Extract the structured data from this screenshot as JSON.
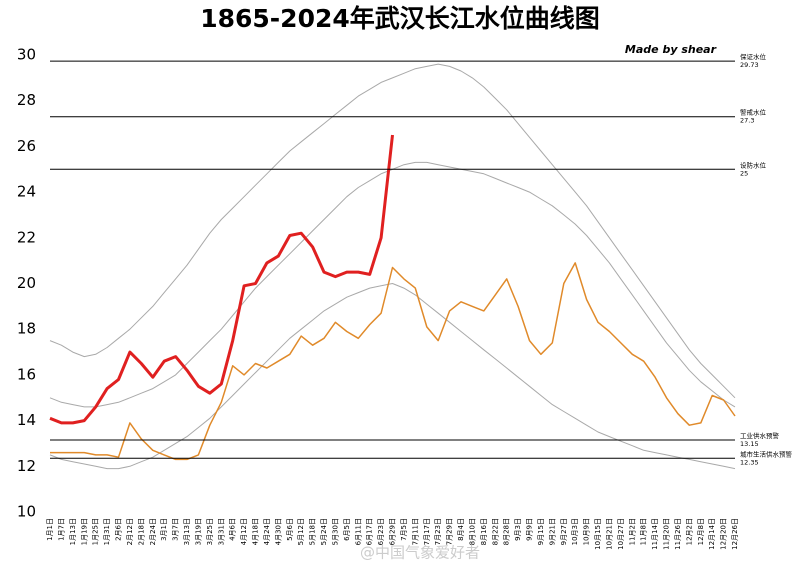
{
  "chart_data": {
    "type": "line",
    "title": "1865-2024年武汉长江水位曲线图",
    "annotation": "Made by shear",
    "watermark": "@中国气象爱好者",
    "categories": [
      "1月1日",
      "1月7日",
      "1月13日",
      "1月19日",
      "1月25日",
      "1月31日",
      "2月6日",
      "2月12日",
      "2月18日",
      "2月24日",
      "3月1日",
      "3月7日",
      "3月13日",
      "3月19日",
      "3月25日",
      "3月31日",
      "4月6日",
      "4月12日",
      "4月18日",
      "4月24日",
      "4月30日",
      "5月6日",
      "5月12日",
      "5月18日",
      "5月24日",
      "5月30日",
      "6月5日",
      "6月11日",
      "6月17日",
      "6月23日",
      "6月29日",
      "7月5日",
      "7月11日",
      "7月17日",
      "7月23日",
      "7月29日",
      "8月4日",
      "8月10日",
      "8月16日",
      "8月22日",
      "8月28日",
      "9月3日",
      "9月9日",
      "9月15日",
      "9月21日",
      "9月27日",
      "10月3日",
      "10月9日",
      "10月15日",
      "10月21日",
      "10月27日",
      "11月2日",
      "11月8日",
      "11月14日",
      "11月20日",
      "11月26日",
      "12月2日",
      "12月8日",
      "12月14日",
      "12月20日",
      "12月26日"
    ],
    "series": [
      {
        "color": "#a9a9a9",
        "linewidth": 1,
        "values": [
          15.0,
          14.8,
          14.7,
          14.6,
          14.6,
          14.7,
          14.8,
          15.0,
          15.2,
          15.4,
          15.7,
          16.0,
          16.5,
          17.0,
          17.5,
          18.0,
          18.6,
          19.2,
          19.8,
          20.3,
          20.8,
          21.3,
          21.8,
          22.3,
          22.8,
          23.3,
          23.8,
          24.2,
          24.5,
          24.8,
          25.0,
          25.2,
          25.3,
          25.3,
          25.2,
          25.1,
          25.0,
          24.9,
          24.8,
          24.6,
          24.4,
          24.2,
          24.0,
          23.7,
          23.4,
          23.0,
          22.6,
          22.1,
          21.5,
          20.9,
          20.2,
          19.5,
          18.8,
          18.1,
          17.4,
          16.8,
          16.2,
          15.7,
          15.3,
          14.9,
          14.6
        ]
      },
      {
        "color": "#a9a9a9",
        "linewidth": 1,
        "values": [
          17.5,
          17.3,
          17.0,
          16.8,
          16.9,
          17.2,
          17.6,
          18.0,
          18.5,
          19.0,
          19.6,
          20.2,
          20.8,
          21.5,
          22.2,
          22.8,
          23.3,
          23.8,
          24.3,
          24.8,
          25.3,
          25.8,
          26.2,
          26.6,
          27.0,
          27.4,
          27.8,
          28.2,
          28.5,
          28.8,
          29.0,
          29.2,
          29.4,
          29.5,
          29.6,
          29.5,
          29.3,
          29.0,
          28.6,
          28.1,
          27.6,
          27.0,
          26.4,
          25.8,
          25.2,
          24.6,
          24.0,
          23.4,
          22.7,
          22.0,
          21.3,
          20.6,
          19.9,
          19.2,
          18.5,
          17.8,
          17.1,
          16.5,
          16.0,
          15.5,
          15.0
        ]
      },
      {
        "color": "#a9a9a9",
        "linewidth": 1,
        "values": [
          12.5,
          12.3,
          12.2,
          12.1,
          12.0,
          11.9,
          11.9,
          12.0,
          12.2,
          12.4,
          12.7,
          13.0,
          13.3,
          13.7,
          14.1,
          14.6,
          15.1,
          15.6,
          16.1,
          16.6,
          17.1,
          17.6,
          18.0,
          18.4,
          18.8,
          19.1,
          19.4,
          19.6,
          19.8,
          19.9,
          20.0,
          19.8,
          19.5,
          19.1,
          18.7,
          18.3,
          17.9,
          17.5,
          17.1,
          16.7,
          16.3,
          15.9,
          15.5,
          15.1,
          14.7,
          14.4,
          14.1,
          13.8,
          13.5,
          13.3,
          13.1,
          12.9,
          12.7,
          12.6,
          12.5,
          12.4,
          12.3,
          12.2,
          12.1,
          12.0,
          11.9
        ]
      },
      {
        "color": "#e08a2a",
        "linewidth": 1.5,
        "values": [
          12.6,
          12.6,
          12.6,
          12.6,
          12.5,
          12.5,
          12.4,
          13.9,
          13.2,
          12.7,
          12.5,
          12.3,
          12.3,
          12.5,
          13.8,
          14.8,
          16.4,
          16.0,
          16.5,
          16.3,
          16.6,
          16.9,
          17.7,
          17.3,
          17.6,
          18.3,
          17.9,
          17.6,
          18.2,
          18.7,
          20.7,
          20.2,
          19.8,
          18.1,
          17.5,
          18.8,
          19.2,
          19.0,
          18.8,
          19.5,
          20.2,
          19.0,
          17.5,
          16.9,
          17.4,
          20.0,
          20.9,
          19.3,
          18.3,
          17.9,
          17.4,
          16.9,
          16.6,
          15.9,
          15.0,
          14.3,
          13.8,
          13.9,
          15.1,
          14.9,
          14.2
        ]
      },
      {
        "color": "#e02020",
        "linewidth": 3,
        "values": [
          14.1,
          13.9,
          13.9,
          14.0,
          14.6,
          15.4,
          15.8,
          17.0,
          16.5,
          15.9,
          16.6,
          16.8,
          16.2,
          15.5,
          15.2,
          15.6,
          17.5,
          19.9,
          20.0,
          20.9,
          21.2,
          22.1,
          22.2,
          21.6,
          20.5,
          20.3,
          20.5,
          20.5,
          20.4,
          22.0,
          26.5,
          null,
          null,
          null,
          null,
          null,
          null,
          null,
          null,
          null,
          null,
          null,
          null,
          null,
          null,
          null,
          null,
          null,
          null,
          null,
          null,
          null,
          null,
          null,
          null,
          null,
          null,
          null,
          null,
          null,
          null
        ]
      }
    ],
    "reference_lines": [
      {
        "label": "保证水位",
        "value": 29.73
      },
      {
        "label": "警戒水位",
        "value": 27.3
      },
      {
        "label": "设防水位",
        "value": 25
      },
      {
        "label": "工业供水预警",
        "value": 13.15
      },
      {
        "label": "城市生活供水预警",
        "value": 12.35
      }
    ],
    "ylim": [
      10,
      30
    ],
    "yticks": [
      10,
      12,
      14,
      16,
      18,
      20,
      22,
      24,
      26,
      28,
      30
    ]
  }
}
